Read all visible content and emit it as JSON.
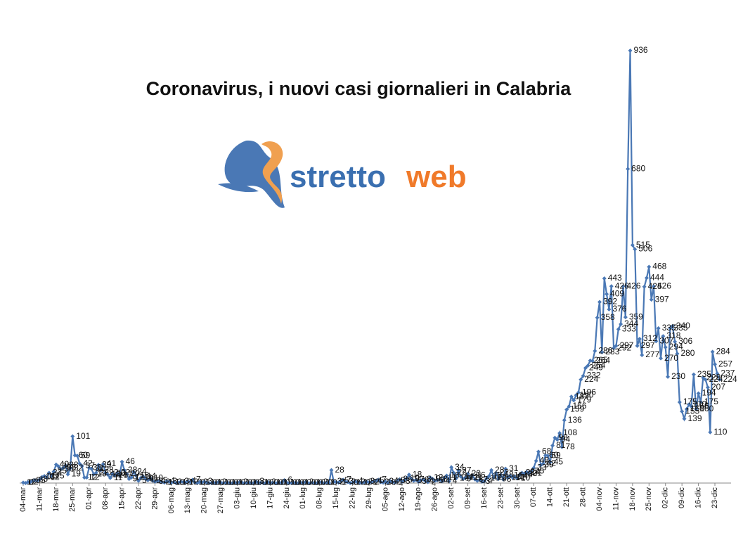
{
  "chart_data": {
    "type": "line",
    "title": "Coronavirus, i nuovi casi giornalieri in Calabria",
    "logo": [
      "stretto",
      "web"
    ],
    "categories": [
      "04-mar",
      null,
      null,
      null,
      null,
      null,
      null,
      "11-mar",
      null,
      null,
      null,
      null,
      null,
      null,
      "18-mar",
      null,
      null,
      null,
      null,
      null,
      null,
      "25-mar",
      null,
      null,
      null,
      null,
      null,
      null,
      "01-apr",
      null,
      null,
      null,
      null,
      null,
      null,
      "08-apr",
      null,
      null,
      null,
      null,
      null,
      null,
      "15-apr",
      null,
      null,
      null,
      null,
      null,
      null,
      "22-apr",
      null,
      null,
      null,
      null,
      null,
      null,
      "29-apr",
      null,
      null,
      null,
      null,
      null,
      null,
      "06-mag",
      null,
      null,
      null,
      null,
      null,
      null,
      "13-mag",
      null,
      null,
      null,
      null,
      null,
      null,
      "20-mag",
      null,
      null,
      null,
      null,
      null,
      null,
      "27-mag",
      null,
      null,
      null,
      null,
      null,
      null,
      "03-giu",
      null,
      null,
      null,
      null,
      null,
      null,
      "10-giu",
      null,
      null,
      null,
      null,
      null,
      null,
      "17-giu",
      null,
      null,
      null,
      null,
      null,
      null,
      "24-giu",
      null,
      null,
      null,
      null,
      null,
      null,
      "01-lug",
      null,
      null,
      null,
      null,
      null,
      null,
      "08-lug",
      null,
      null,
      null,
      null,
      null,
      null,
      "15-lug",
      null,
      null,
      null,
      null,
      null,
      null,
      "22-lug",
      null,
      null,
      null,
      null,
      null,
      null,
      "29-lug",
      null,
      null,
      null,
      null,
      null,
      null,
      "05-ago",
      null,
      null,
      null,
      null,
      null,
      null,
      "12-ago",
      null,
      null,
      null,
      null,
      null,
      null,
      "19-ago",
      null,
      null,
      null,
      null,
      null,
      null,
      "26-ago",
      null,
      null,
      null,
      null,
      null,
      null,
      "02-set",
      null,
      null,
      null,
      null,
      null,
      null,
      "09-set",
      null,
      null,
      null,
      null,
      null,
      null,
      "16-set",
      null,
      null,
      null,
      null,
      null,
      null,
      "23-set",
      null,
      null,
      null,
      null,
      null,
      null,
      "30-set",
      null,
      null,
      null,
      null,
      null,
      null,
      "07-ott",
      null,
      null,
      null,
      null,
      null,
      null,
      "14-ott",
      null,
      null,
      null,
      null,
      null,
      null,
      "21-ott",
      null,
      null,
      null,
      null,
      null,
      null,
      "28-ott",
      null,
      null,
      null,
      null,
      null,
      null,
      "04-nov",
      null,
      null,
      null,
      null,
      null,
      null,
      "11-nov",
      null,
      null,
      null,
      null,
      null,
      null,
      "18-nov",
      null,
      null,
      null,
      null,
      null,
      null,
      "25-nov",
      null,
      null,
      null,
      null,
      null,
      null,
      "02-dic",
      null,
      null,
      null,
      null,
      null,
      null,
      "09-dic",
      null,
      null,
      null,
      null,
      null,
      null,
      "16-dic",
      null,
      null,
      null,
      null,
      null,
      null,
      "23-dic",
      null,
      null
    ],
    "values": [
      1,
      0,
      2,
      2,
      5,
      6,
      5,
      8,
      13,
      15,
      12,
      22,
      15,
      25,
      40,
      36,
      30,
      33,
      38,
      19,
      32,
      101,
      60,
      59,
      42,
      37,
      12,
      12,
      33,
      31,
      19,
      22,
      39,
      28,
      41,
      22,
      18,
      11,
      20,
      16,
      22,
      17,
      46,
      28,
      20,
      9,
      12,
      24,
      16,
      5,
      11,
      14,
      9,
      6,
      10,
      5,
      3,
      4,
      5,
      2,
      1,
      4,
      3,
      1,
      2,
      0,
      1,
      3,
      2,
      1,
      4,
      2,
      7,
      1,
      0,
      2,
      1,
      3,
      1,
      0,
      0,
      1,
      0,
      2,
      1,
      0,
      0,
      1,
      0,
      0,
      1,
      0,
      2,
      1,
      0,
      0,
      1,
      0,
      0,
      3,
      0,
      1,
      0,
      0,
      2,
      0,
      1,
      0,
      0,
      1,
      0,
      6,
      1,
      0,
      0,
      1,
      0,
      0,
      1,
      0,
      2,
      0,
      0,
      1,
      0,
      0,
      2,
      1,
      0,
      1,
      0,
      28,
      3,
      2,
      1,
      5,
      7,
      3,
      2,
      0,
      1,
      4,
      2,
      1,
      0,
      2,
      3,
      1,
      2,
      4,
      5,
      7,
      2,
      1,
      3,
      0,
      4,
      2,
      1,
      5,
      8,
      3,
      6,
      10,
      18,
      9,
      5,
      7,
      3,
      6,
      8,
      4,
      2,
      12,
      9,
      5,
      6,
      8,
      4,
      11,
      16,
      4,
      34,
      22,
      10,
      27,
      14,
      9,
      12,
      20,
      11,
      16,
      8,
      5,
      7,
      3,
      4,
      10,
      15,
      28,
      12,
      22,
      9,
      18,
      8,
      31,
      11,
      16,
      12,
      14,
      10,
      18,
      22,
      20,
      24,
      21,
      25,
      33,
      48,
      68,
      39,
      42,
      60,
      59,
      45,
      81,
      98,
      94,
      108,
      78,
      136,
      159,
      166,
      187,
      179,
      190,
      196,
      224,
      232,
      249,
      254,
      265,
      264,
      286,
      358,
      392,
      283,
      443,
      409,
      376,
      426,
      292,
      297,
      333,
      344,
      426,
      359,
      680,
      936,
      515,
      506,
      297,
      312,
      277,
      425,
      444,
      468,
      397,
      426,
      307,
      335,
      270,
      318,
      294,
      230,
      335,
      340,
      306,
      280,
      175,
      155,
      139,
      160,
      170,
      166,
      235,
      160,
      194,
      175,
      228,
      224,
      207,
      110,
      284,
      257,
      237,
      224
    ],
    "color": "#4a78b5",
    "ylim": [
      0,
      1000
    ]
  }
}
